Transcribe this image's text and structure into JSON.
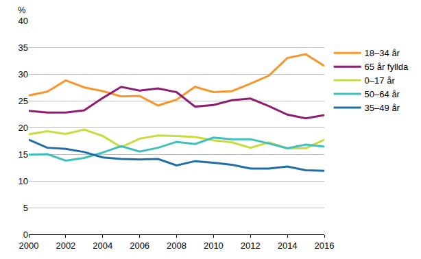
{
  "chart_data": {
    "type": "line",
    "ylabel": "%",
    "x": [
      2000,
      2001,
      2002,
      2003,
      2004,
      2005,
      2006,
      2007,
      2008,
      2009,
      2010,
      2011,
      2012,
      2013,
      2014,
      2015,
      2016
    ],
    "series": [
      {
        "name": "18–34 år",
        "color": "#f7962a",
        "values": [
          26.0,
          26.7,
          28.8,
          27.5,
          26.8,
          25.8,
          25.9,
          24.1,
          25.2,
          27.6,
          26.6,
          26.8,
          28.2,
          29.7,
          33.0,
          33.7,
          31.5
        ]
      },
      {
        "name": "65 år fyllda",
        "color": "#8e1d72",
        "values": [
          23.1,
          22.8,
          22.8,
          23.2,
          25.5,
          27.6,
          26.9,
          27.3,
          26.6,
          23.9,
          24.2,
          25.1,
          25.4,
          24.0,
          22.4,
          21.7,
          22.3
        ]
      },
      {
        "name": "0–17 år",
        "color": "#c8dc3c",
        "values": [
          18.7,
          19.3,
          18.8,
          19.6,
          18.4,
          16.3,
          17.9,
          18.5,
          18.4,
          18.2,
          17.6,
          17.2,
          16.2,
          17.2,
          16.1,
          16.1,
          17.7
        ]
      },
      {
        "name": "50–64 år",
        "color": "#3fbfbf",
        "values": [
          14.9,
          15.0,
          13.8,
          14.3,
          15.3,
          16.5,
          15.5,
          16.2,
          17.3,
          16.9,
          18.1,
          17.8,
          17.8,
          17.0,
          16.1,
          16.8,
          16.4
        ]
      },
      {
        "name": "35–49 år",
        "color": "#1f6ea6",
        "values": [
          17.7,
          16.2,
          16.0,
          15.4,
          14.4,
          14.1,
          14.0,
          14.1,
          12.9,
          13.7,
          13.4,
          13.0,
          12.3,
          12.3,
          12.7,
          12.0,
          11.9
        ]
      }
    ],
    "xlim": [
      2000,
      2016
    ],
    "xticks": [
      2000,
      2002,
      2004,
      2006,
      2008,
      2010,
      2012,
      2014,
      2016
    ],
    "ylim": [
      0,
      40
    ],
    "yticks": [
      0,
      5,
      10,
      15,
      20,
      25,
      30,
      35,
      40
    ],
    "grid": true,
    "legend": "right"
  }
}
